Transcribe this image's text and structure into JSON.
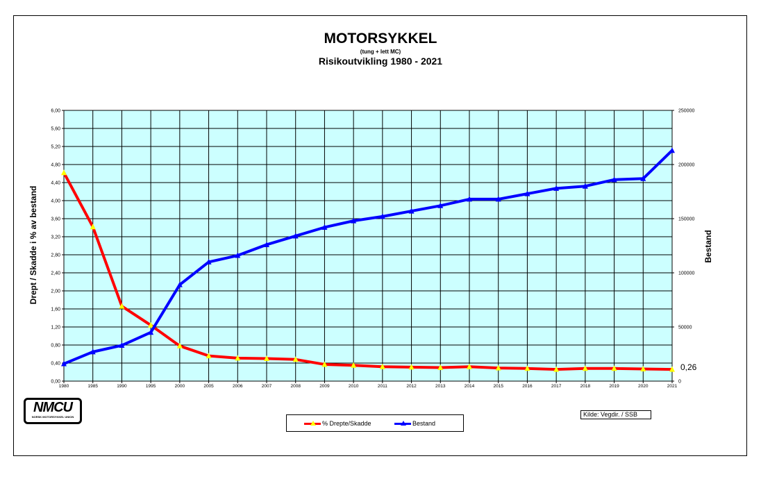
{
  "title": "MOTORSYKKEL",
  "subtitle": "(tung + lett MC)",
  "subtitle2": "Risikoutvikling 1980 - 2021",
  "logo": {
    "text": "NMCU",
    "sub": "NORSK MOTORSYKKEL UNION"
  },
  "source": "Kilde: Vegdir. / SSB",
  "colors": {
    "plot_bg": "#ccffff",
    "red": "#ff0000",
    "blue": "#0000ff",
    "marker_yellow": "#ffff00"
  },
  "chart_data": {
    "type": "line",
    "categories": [
      "1980",
      "1985",
      "1990",
      "1995",
      "2000",
      "2005",
      "2006",
      "2007",
      "2008",
      "2009",
      "2010",
      "2011",
      "2012",
      "2013",
      "2014",
      "2015",
      "2016",
      "2017",
      "2018",
      "2019",
      "2020",
      "2021"
    ],
    "ylabel": "Drept / Skadde i % av bestand",
    "y2label": "Bestand",
    "ylim": [
      0,
      6
    ],
    "y_ticks": [
      "0,00",
      "0,40",
      "0,80",
      "1,20",
      "1,60",
      "2,00",
      "2,40",
      "2,80",
      "3,20",
      "3,60",
      "4,00",
      "4,40",
      "4,80",
      "5,20",
      "5,60",
      "6,00"
    ],
    "y2lim": [
      0,
      250000
    ],
    "y2_ticks": [
      "0",
      "50000",
      "100000",
      "150000",
      "200000",
      "250000"
    ],
    "grid": true,
    "legend_position": "bottom-center",
    "series": [
      {
        "name": "% Drepte/Skadde",
        "axis": "left",
        "color": "#ff0000",
        "values": [
          4.62,
          3.42,
          1.66,
          1.24,
          0.78,
          0.56,
          0.51,
          0.5,
          0.48,
          0.37,
          0.35,
          0.32,
          0.31,
          0.3,
          0.32,
          0.29,
          0.28,
          0.26,
          0.28,
          0.28,
          0.27,
          0.26
        ]
      },
      {
        "name": "Bestand",
        "axis": "right",
        "color": "#0000ff",
        "values": [
          16000,
          27000,
          33000,
          45000,
          89000,
          110000,
          116000,
          126000,
          134000,
          142000,
          148000,
          152000,
          157000,
          162000,
          168000,
          168000,
          173000,
          178000,
          180000,
          186000,
          187000,
          213000
        ]
      }
    ],
    "annotations": [
      {
        "text": "0,26"
      }
    ]
  }
}
